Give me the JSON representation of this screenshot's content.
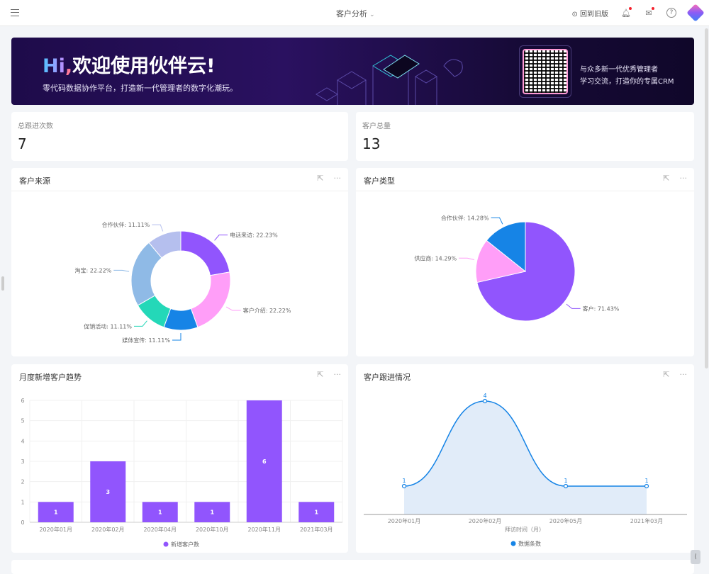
{
  "header": {
    "title": "客户分析",
    "back_label": "回到旧版",
    "icons": [
      "menu-icon",
      "bell-icon",
      "inbox-icon",
      "help-icon",
      "app-logo"
    ]
  },
  "banner": {
    "hi": "Hi",
    "comma": ",",
    "greeting": "欢迎使用伙伴云!",
    "subtitle": "零代码数据协作平台，打造新一代管理者的数字化潮玩。",
    "qr_line1": "与众多新一代优秀管理者",
    "qr_line2": "学习交流，打造你的专属CRM"
  },
  "stats": [
    {
      "label": "总跟进次数",
      "value": "7"
    },
    {
      "label": "客户总量",
      "value": "13"
    }
  ],
  "colors": {
    "purple": "#9155fd",
    "pink": "#ff9ef8",
    "blue": "#1684e6",
    "teal": "#24d8b8",
    "lightblue": "#8fbae6",
    "lavender": "#b5bfee"
  },
  "chart_data": [
    {
      "type": "pie",
      "title": "客户来源",
      "donut": true,
      "labels": [
        "电话来访",
        "客户介绍",
        "媒体宣传",
        "促销活动",
        "淘宝",
        "合作伙伴"
      ],
      "values": [
        22.23,
        22.22,
        11.11,
        11.11,
        22.22,
        11.11
      ],
      "display": [
        "电话来访: 22.23%",
        "客户介绍: 22.22%",
        "媒体宣传: 11.11%",
        "促销活动: 11.11%",
        "淘宝: 22.22%",
        "合作伙伴: 11.11%"
      ],
      "colors": [
        "#9155fd",
        "#ff9ef8",
        "#1684e6",
        "#24d8b8",
        "#8fbae6",
        "#b5bfee"
      ]
    },
    {
      "type": "pie",
      "title": "客户类型",
      "donut": false,
      "labels": [
        "客户",
        "供应商",
        "合作伙伴"
      ],
      "values": [
        71.43,
        14.29,
        14.28
      ],
      "display": [
        "客户: 71.43%",
        "供应商: 14.29%",
        "合作伙伴: 14.28%"
      ],
      "colors": [
        "#9155fd",
        "#ff9ef8",
        "#1684e6"
      ]
    },
    {
      "type": "bar",
      "title": "月度新增客户趋势",
      "categories": [
        "2020年01月",
        "2020年02月",
        "2020年04月",
        "2020年10月",
        "2020年11月",
        "2021年03月"
      ],
      "series": [
        {
          "name": "新增客户数",
          "values": [
            1,
            3,
            1,
            1,
            6,
            1
          ]
        }
      ],
      "ylim": [
        0,
        6
      ],
      "yticks": [
        "0",
        "1",
        "2",
        "3",
        "4",
        "5",
        "6"
      ],
      "grid": true,
      "legend": "bottom",
      "color": "#9155fd"
    },
    {
      "type": "area",
      "title": "客户跟进情况",
      "categories": [
        "2020年01月",
        "2020年02月",
        "2020年05月",
        "2021年03月"
      ],
      "series": [
        {
          "name": "数据条数",
          "values": [
            1,
            4,
            1,
            1
          ]
        }
      ],
      "xlabel": "拜访时间（月）",
      "ylim": [
        0,
        5
      ],
      "legend": "bottom",
      "color": "#1684e6"
    }
  ]
}
